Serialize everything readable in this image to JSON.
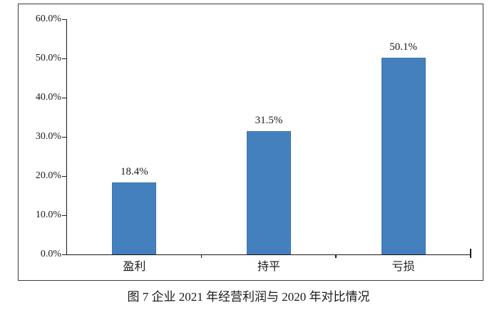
{
  "caption": "图 7  企业 2021 年经营利润与 2020 年对比情况",
  "colors": {
    "bar_fill": "#4580BE",
    "bar_border": "#3d74ae",
    "axis": "#1a1a1a",
    "frame_border": "#3a3a3a",
    "background": "#ffffff",
    "text": "#1a1a1a"
  },
  "chart_data": {
    "type": "bar",
    "categories": [
      "盈利",
      "持平",
      "亏损"
    ],
    "values": [
      18.4,
      31.5,
      50.1
    ],
    "data_labels": [
      "18.4%",
      "31.5%",
      "50.1%"
    ],
    "title": "",
    "xlabel": "",
    "ylabel": "",
    "ylim": [
      0,
      60
    ],
    "ytick_step": 10,
    "ytick_labels": [
      "0.0%",
      "10.0%",
      "20.0%",
      "30.0%",
      "40.0%",
      "50.0%",
      "60.0%"
    ],
    "grid": false,
    "legend": "none",
    "data_labels_shown": true
  }
}
